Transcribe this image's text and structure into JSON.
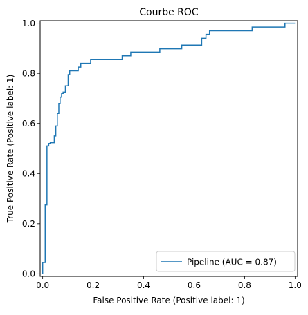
{
  "chart_data": {
    "type": "line",
    "title": "Courbe ROC",
    "xlabel": "False Positive Rate (Positive label: 1)",
    "ylabel": "True Positive Rate (Positive label: 1)",
    "xlim": [
      -0.01,
      1.01
    ],
    "ylim": [
      -0.01,
      1.01
    ],
    "xticks": [
      0.0,
      0.2,
      0.4,
      0.6,
      0.8,
      1.0
    ],
    "xtick_labels": [
      "0.0",
      "0.2",
      "0.4",
      "0.6",
      "0.8",
      "1.0"
    ],
    "yticks": [
      0.0,
      0.2,
      0.4,
      0.6,
      0.8,
      1.0
    ],
    "ytick_labels": [
      "0.0",
      "0.2",
      "0.4",
      "0.6",
      "0.8",
      "1.0"
    ],
    "grid": false,
    "legend_position": "lower-right",
    "series": [
      {
        "name": "Pipeline (AUC = 0.87)",
        "color": "#1f77b4",
        "x": [
          0.0,
          0.0,
          0.01,
          0.01,
          0.017,
          0.017,
          0.024,
          0.024,
          0.03,
          0.03,
          0.046,
          0.046,
          0.052,
          0.052,
          0.058,
          0.058,
          0.064,
          0.064,
          0.069,
          0.069,
          0.075,
          0.075,
          0.081,
          0.081,
          0.09,
          0.09,
          0.101,
          0.101,
          0.107,
          0.107,
          0.115,
          0.115,
          0.141,
          0.141,
          0.151,
          0.151,
          0.165,
          0.165,
          0.19,
          0.19,
          0.315,
          0.315,
          0.349,
          0.349,
          0.464,
          0.464,
          0.551,
          0.551,
          0.63,
          0.63,
          0.647,
          0.647,
          0.661,
          0.661,
          0.83,
          0.83,
          0.96,
          0.96,
          1.0
        ],
        "y": [
          0.0,
          0.045,
          0.045,
          0.275,
          0.275,
          0.51,
          0.51,
          0.52,
          0.52,
          0.523,
          0.523,
          0.55,
          0.55,
          0.59,
          0.59,
          0.64,
          0.64,
          0.68,
          0.68,
          0.705,
          0.705,
          0.72,
          0.72,
          0.725,
          0.725,
          0.75,
          0.75,
          0.795,
          0.795,
          0.81,
          0.81,
          0.81,
          0.81,
          0.825,
          0.825,
          0.84,
          0.84,
          0.84,
          0.84,
          0.855,
          0.855,
          0.87,
          0.87,
          0.885,
          0.885,
          0.898,
          0.898,
          0.913,
          0.913,
          0.94,
          0.94,
          0.956,
          0.956,
          0.97,
          0.97,
          0.985,
          0.985,
          1.0,
          1.0
        ]
      }
    ]
  }
}
